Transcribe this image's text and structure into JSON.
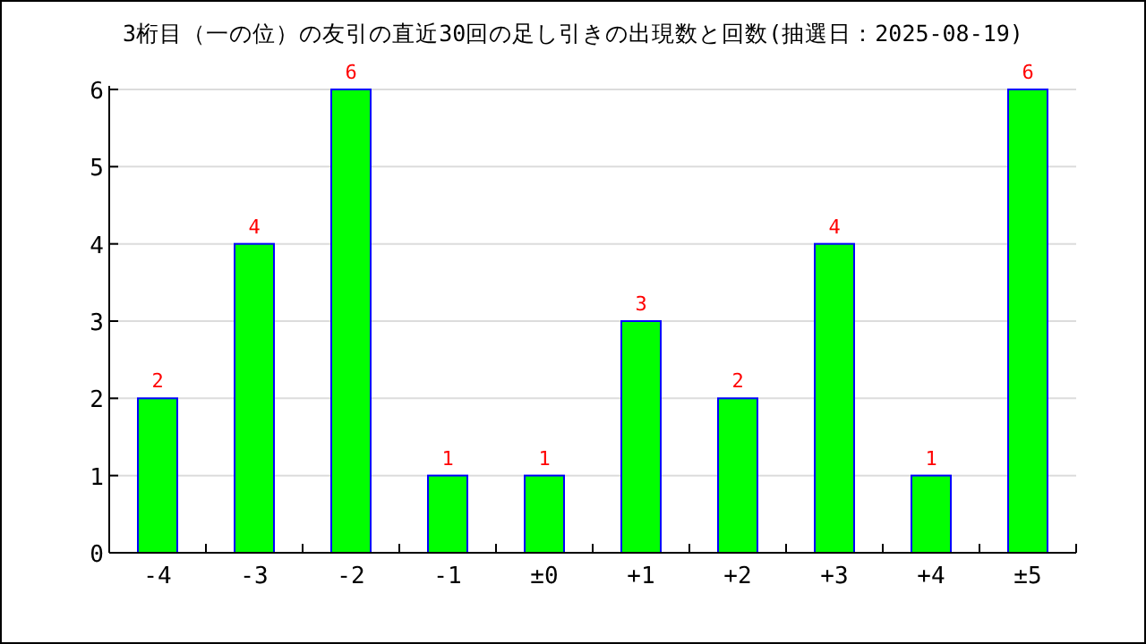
{
  "chart_data": {
    "type": "bar",
    "title": "3桁目（一の位）の友引の直近30回の足し引きの出現数と回数(抽選日：2025-08-19)",
    "categories": [
      "-4",
      "-3",
      "-2",
      "-1",
      "±0",
      "+1",
      "+2",
      "+3",
      "+4",
      "±5"
    ],
    "values": [
      2,
      4,
      6,
      1,
      1,
      3,
      2,
      4,
      1,
      6
    ],
    "color": "#00ff00",
    "ylim": [
      0,
      6
    ],
    "yticks": [
      0,
      1,
      2,
      3,
      4,
      5,
      6
    ],
    "grid": "y",
    "data_labels": true
  }
}
